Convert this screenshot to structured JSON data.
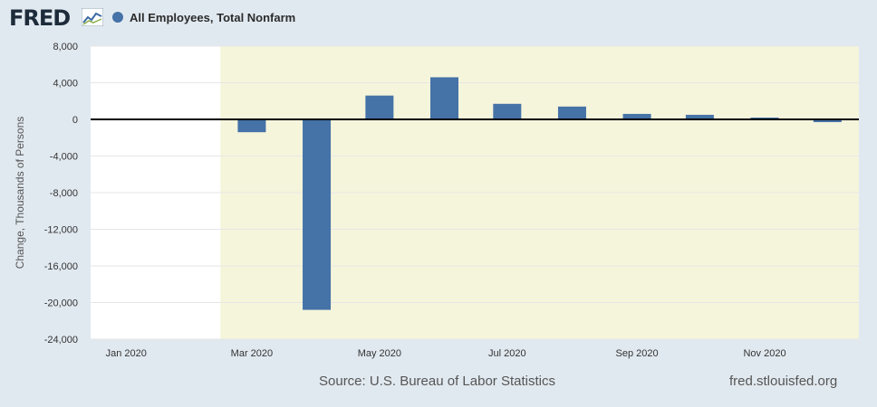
{
  "header": {
    "logo_text": "FRED",
    "logo_icon": "fred-line-graph-icon",
    "legend_label": "All Employees, Total Nonfarm"
  },
  "footer": {
    "source": "Source: U.S. Bureau of Labor Statistics",
    "site": "fred.stlouisfed.org"
  },
  "colors": {
    "bar": "#4572a7",
    "recession": "#f5f5dc",
    "plot_bg": "#ffffff",
    "page_bg": "#e1e9f0"
  },
  "chart_data": {
    "type": "bar",
    "title": "",
    "xlabel": "",
    "ylabel": "Change, Thousands of Persons",
    "ylim": [
      -24000,
      8000
    ],
    "yticks": [
      8000,
      4000,
      0,
      -4000,
      -8000,
      -12000,
      -16000,
      -20000,
      -24000
    ],
    "ytick_labels": [
      "8,000",
      "4,000",
      "0",
      "-4,000",
      "-8,000",
      "-12,000",
      "-16,000",
      "-20,000",
      "-24,000"
    ],
    "xlim": [
      "2019-12-15",
      "2020-12-16"
    ],
    "xtick_labels": [
      {
        "date": "2020-01-01",
        "label": "Jan 2020"
      },
      {
        "date": "2020-03-01",
        "label": "Mar 2020"
      },
      {
        "date": "2020-05-01",
        "label": "May 2020"
      },
      {
        "date": "2020-07-01",
        "label": "Jul 2020"
      },
      {
        "date": "2020-09-01",
        "label": "Sep 2020"
      },
      {
        "date": "2020-11-01",
        "label": "Nov 2020"
      }
    ],
    "recession_start": "2020-02-15",
    "grid": true,
    "series": [
      {
        "name": "All Employees, Total Nonfarm",
        "x": [
          "2020-03-01",
          "2020-04-01",
          "2020-05-01",
          "2020-06-01",
          "2020-07-01",
          "2020-08-01",
          "2020-09-01",
          "2020-10-01",
          "2020-11-01",
          "2020-12-01"
        ],
        "values": [
          -1400,
          -20800,
          2600,
          4600,
          1700,
          1400,
          600,
          500,
          200,
          -300
        ]
      }
    ]
  }
}
